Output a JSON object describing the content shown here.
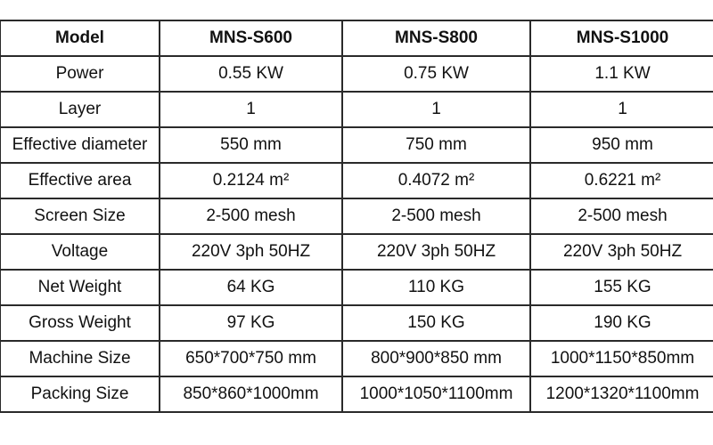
{
  "table": {
    "header": [
      "Model",
      "MNS-S600",
      "MNS-S800",
      "MNS-S1000"
    ],
    "rows": [
      [
        "Power",
        "0.55 KW",
        "0.75 KW",
        "1.1 KW"
      ],
      [
        "Layer",
        "1",
        "1",
        "1"
      ],
      [
        "Effective diameter",
        "550 mm",
        "750 mm",
        "950 mm"
      ],
      [
        "Effective area",
        "0.2124 m²",
        "0.4072 m²",
        "0.6221 m²"
      ],
      [
        "Screen Size",
        "2-500 mesh",
        "2-500 mesh",
        "2-500 mesh"
      ],
      [
        "Voltage",
        "220V 3ph 50HZ",
        "220V 3ph 50HZ",
        "220V 3ph 50HZ"
      ],
      [
        "Net Weight",
        "64 KG",
        "110 KG",
        "155 KG"
      ],
      [
        "Gross Weight",
        "97 KG",
        "150 KG",
        "190 KG"
      ],
      [
        "Machine Size",
        "650*700*750 mm",
        "800*900*850 mm",
        "1000*1150*850mm"
      ],
      [
        "Packing Size",
        "850*860*1000mm",
        "1000*1050*1100mm",
        "1200*1320*1100mm"
      ]
    ]
  }
}
